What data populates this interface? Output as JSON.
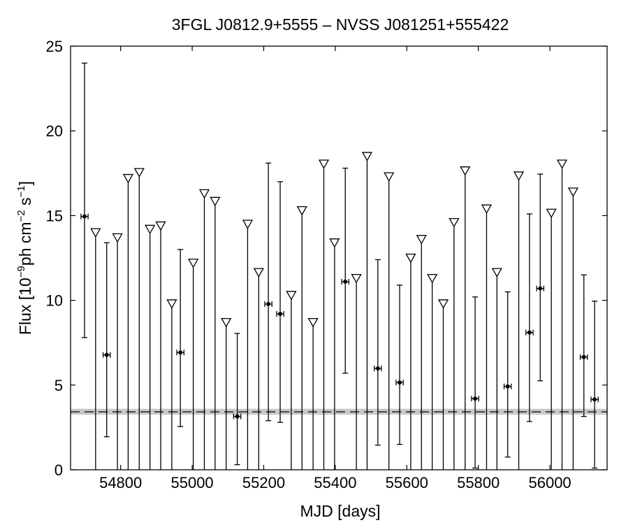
{
  "chart_data": {
    "type": "scatter",
    "title": "3FGL J0812.9+5555 – NVSS J081251+555422",
    "xlabel": "MJD [days]",
    "ylabel": {
      "prefix": "Flux [10",
      "exp1": "−9",
      "mid": "ph cm",
      "exp2": "−2",
      "mid2": " s",
      "exp3": "−1",
      "suffix": "]"
    },
    "xlim": [
      54660,
      56160
    ],
    "ylim": [
      0,
      25
    ],
    "xticks": [
      54800,
      55000,
      55200,
      55400,
      55600,
      55800,
      56000
    ],
    "yticks": [
      0,
      5,
      10,
      15,
      20,
      25
    ],
    "grid": false,
    "baseline": {
      "value": 3.42,
      "band": [
        3.25,
        3.6
      ]
    },
    "detections": [
      {
        "x": 54699,
        "y": 14.95,
        "xerr": 10,
        "ylo": 7.8,
        "yhi": 24.0
      },
      {
        "x": 54761,
        "y": 6.78,
        "xerr": 10,
        "ylo": 1.95,
        "yhi": 13.4
      },
      {
        "x": 54967,
        "y": 6.92,
        "xerr": 10,
        "ylo": 2.55,
        "yhi": 13.0
      },
      {
        "x": 55126,
        "y": 3.15,
        "xerr": 10,
        "ylo": 0.3,
        "yhi": 8.05
      },
      {
        "x": 55213,
        "y": 9.78,
        "xerr": 10,
        "ylo": 2.9,
        "yhi": 18.1
      },
      {
        "x": 55246,
        "y": 9.2,
        "xerr": 10,
        "ylo": 2.8,
        "yhi": 17.0
      },
      {
        "x": 55428,
        "y": 11.1,
        "xerr": 10,
        "ylo": 5.7,
        "yhi": 17.8
      },
      {
        "x": 55519,
        "y": 5.98,
        "xerr": 10,
        "ylo": 1.45,
        "yhi": 12.4
      },
      {
        "x": 55580,
        "y": 5.15,
        "xerr": 10,
        "ylo": 1.5,
        "yhi": 10.9
      },
      {
        "x": 55791,
        "y": 4.2,
        "xerr": 10,
        "ylo": 0.1,
        "yhi": 10.2
      },
      {
        "x": 55882,
        "y": 4.92,
        "xerr": 10,
        "ylo": 0.75,
        "yhi": 10.5
      },
      {
        "x": 55943,
        "y": 8.1,
        "xerr": 10,
        "ylo": 2.85,
        "yhi": 15.1
      },
      {
        "x": 55973,
        "y": 10.7,
        "xerr": 10,
        "ylo": 5.25,
        "yhi": 17.45
      },
      {
        "x": 56095,
        "y": 6.65,
        "xerr": 10,
        "ylo": 3.15,
        "yhi": 11.5
      },
      {
        "x": 56125,
        "y": 4.15,
        "xerr": 10,
        "ylo": 0.1,
        "yhi": 9.95
      }
    ],
    "upper_limits": [
      {
        "x": 54730,
        "y": 14.0
      },
      {
        "x": 54791,
        "y": 13.7
      },
      {
        "x": 54821,
        "y": 17.2
      },
      {
        "x": 54852,
        "y": 17.55
      },
      {
        "x": 54882,
        "y": 14.2
      },
      {
        "x": 54912,
        "y": 14.4
      },
      {
        "x": 54943,
        "y": 9.8
      },
      {
        "x": 55003,
        "y": 12.2
      },
      {
        "x": 55034,
        "y": 16.3
      },
      {
        "x": 55064,
        "y": 15.85
      },
      {
        "x": 55095,
        "y": 8.7
      },
      {
        "x": 55155,
        "y": 14.5
      },
      {
        "x": 55186,
        "y": 11.65
      },
      {
        "x": 55277,
        "y": 10.3
      },
      {
        "x": 55307,
        "y": 15.3
      },
      {
        "x": 55338,
        "y": 8.7
      },
      {
        "x": 55368,
        "y": 18.05
      },
      {
        "x": 55398,
        "y": 13.4
      },
      {
        "x": 55459,
        "y": 11.3
      },
      {
        "x": 55489,
        "y": 18.5
      },
      {
        "x": 55550,
        "y": 17.3
      },
      {
        "x": 55611,
        "y": 12.5
      },
      {
        "x": 55641,
        "y": 13.6
      },
      {
        "x": 55671,
        "y": 11.3
      },
      {
        "x": 55702,
        "y": 9.8
      },
      {
        "x": 55732,
        "y": 14.6
      },
      {
        "x": 55763,
        "y": 17.65
      },
      {
        "x": 55823,
        "y": 15.4
      },
      {
        "x": 55852,
        "y": 11.65
      },
      {
        "x": 55913,
        "y": 17.35
      },
      {
        "x": 56004,
        "y": 15.15
      },
      {
        "x": 56034,
        "y": 18.05
      },
      {
        "x": 56065,
        "y": 16.4
      }
    ]
  }
}
